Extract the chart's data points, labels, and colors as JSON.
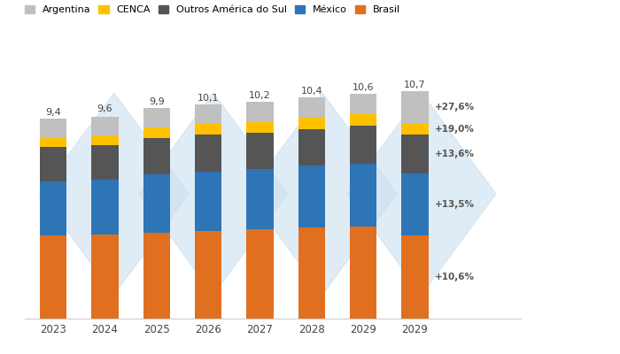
{
  "years": [
    "2023",
    "2024",
    "2025",
    "2026",
    "2027",
    "2028",
    "2029",
    "2029"
  ],
  "totals": [
    9.4,
    9.6,
    9.9,
    10.1,
    10.2,
    10.4,
    10.6,
    10.7
  ],
  "brasil": [
    3.92,
    3.95,
    4.05,
    4.12,
    4.2,
    4.3,
    4.35,
    3.93
  ],
  "mexico": [
    2.55,
    2.6,
    2.75,
    2.8,
    2.85,
    2.9,
    2.95,
    2.9
  ],
  "outros": [
    1.6,
    1.62,
    1.72,
    1.74,
    1.7,
    1.73,
    1.78,
    1.82
  ],
  "cenca": [
    0.45,
    0.47,
    0.47,
    0.49,
    0.5,
    0.52,
    0.54,
    0.57
  ],
  "argentina": [
    0.88,
    0.86,
    0.91,
    0.95,
    0.95,
    0.95,
    0.98,
    1.48
  ],
  "colors": {
    "brasil": "#E07020",
    "mexico": "#2E75B6",
    "outros": "#555555",
    "cenca": "#FFC000",
    "argentina": "#C0C0C0"
  },
  "legend_labels": {
    "argentina": "Argentina",
    "cenca": "CENCA",
    "outros": "Outros América do Sul",
    "mexico": "México",
    "brasil": "Brasil"
  },
  "annotations": [
    "+27,6%",
    "+19,0%",
    "+13,6%",
    "+13,5%",
    "+10,6%"
  ],
  "background_color": "#FFFFFF",
  "bg_watermark_color": "#C8DEEE"
}
